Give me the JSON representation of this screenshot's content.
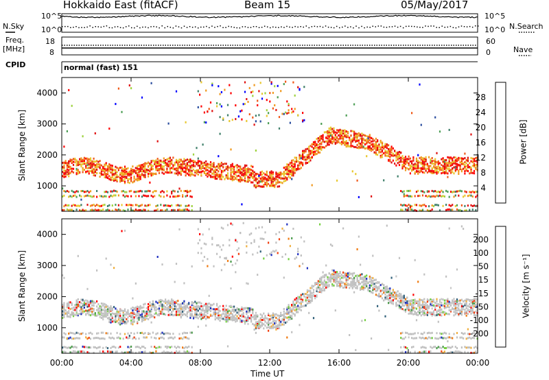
{
  "header": {
    "station": "Hokkaido East (fitACF)",
    "beam": "Beam 15",
    "date": "05/May/2017"
  },
  "top_panels": {
    "nsky_label": "N.Sky",
    "nsearch_label": "N.Search",
    "noise_ticks": [
      "10^5",
      "10^0"
    ],
    "freq_label_1": "Freq.",
    "freq_label_2": "[MHz]",
    "freq_ticks": [
      "18",
      "8"
    ],
    "nave_label": "Nave",
    "nave_ticks": [
      "60",
      "0"
    ],
    "cpid_label": "CPID",
    "cpid_value": "normal (fast) 151"
  },
  "colors": {
    "power": [
      "#0000ff",
      "#2a4d9e",
      "#3f7f6a",
      "#4c9e55",
      "#9ed23f",
      "#e8c830",
      "#f09a20",
      "#f05818",
      "#e01010",
      "#ff0000"
    ],
    "velocity": [
      "#ff0000",
      "#f04010",
      "#f07a10",
      "#f0b040",
      "#c8c8c8",
      "#c8c8c8",
      "#74d040",
      "#4a9a4a",
      "#30607a",
      "#2030c0"
    ],
    "gray": "#c0c0c0"
  },
  "chart_data": [
    {
      "type": "heatmap",
      "name": "power",
      "ylabel": "Slant Range [km]",
      "xlabel": "Time UT",
      "x_ticks": [
        "00:00",
        "04:00",
        "08:00",
        "12:00",
        "16:00",
        "20:00",
        "00:00"
      ],
      "y_ticks": [
        "1000",
        "2000",
        "3000",
        "4000"
      ],
      "xlim_hours": [
        0,
        24
      ],
      "ylim_km": [
        180,
        4500
      ],
      "colorbar_label": "Power [dB]",
      "colorbar_ticks": [
        "4",
        "8",
        "12",
        "16",
        "20",
        "24",
        "28"
      ],
      "colorbar_range": [
        0,
        32
      ]
    },
    {
      "type": "heatmap",
      "name": "velocity",
      "ylabel": "Slant Range [km]",
      "xlabel": "Time UT",
      "x_ticks": [
        "00:00",
        "04:00",
        "08:00",
        "12:00",
        "16:00",
        "20:00",
        "00:00"
      ],
      "y_ticks": [
        "1000",
        "2000",
        "3000",
        "4000"
      ],
      "xlim_hours": [
        0,
        24
      ],
      "ylim_km": [
        180,
        4500
      ],
      "colorbar_label": "Velocity [m s⁻¹]",
      "colorbar_ticks": [
        "200",
        "100",
        "50",
        "15",
        "-15",
        "-50",
        "-100",
        "-200"
      ]
    }
  ]
}
